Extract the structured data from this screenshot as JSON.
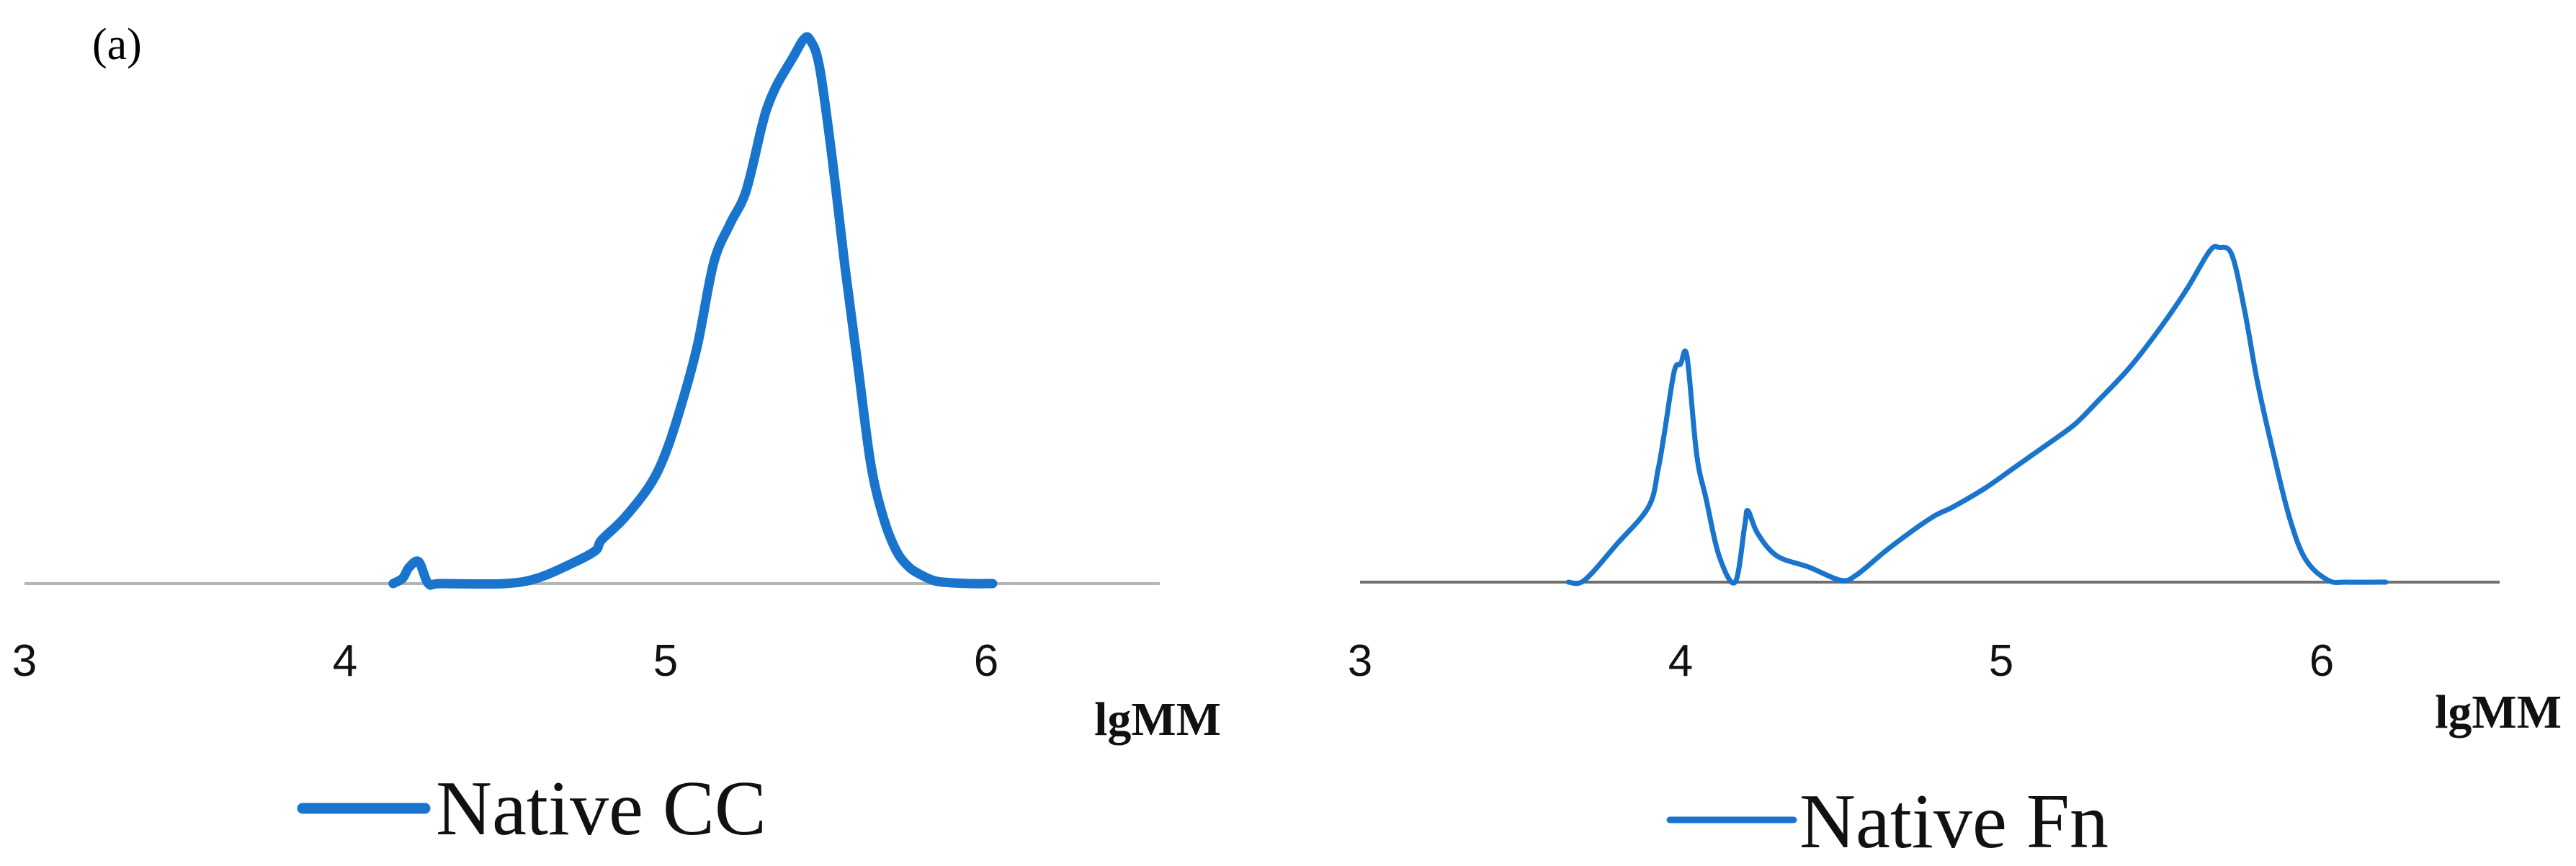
{
  "panel_label": "(a)",
  "chart_data": [
    {
      "type": "line",
      "title": "",
      "xlabel": "lgMM",
      "ylabel": "",
      "xlim": [
        3,
        6.5
      ],
      "ylim": [
        0,
        1
      ],
      "x_ticks": [
        "3",
        "4",
        "5",
        "6"
      ],
      "grid": false,
      "legend_position": "bottom-center",
      "series": [
        {
          "name": "Native CC",
          "color": "#1874cd",
          "line": "thick",
          "x": [
            4.15,
            4.18,
            4.2,
            4.23,
            4.26,
            4.3,
            4.5,
            4.6,
            4.7,
            4.78,
            4.8,
            4.87,
            4.95,
            5.0,
            5.05,
            5.1,
            5.15,
            5.2,
            5.25,
            5.3,
            5.32,
            5.35,
            5.4,
            5.43,
            5.45,
            5.48,
            5.52,
            5.56,
            5.6,
            5.64,
            5.68,
            5.72,
            5.76,
            5.8,
            5.84,
            5.88,
            5.95,
            6.02
          ],
          "y": [
            0.0,
            0.01,
            0.03,
            0.04,
            0.0,
            0.0,
            0.0,
            0.01,
            0.035,
            0.06,
            0.08,
            0.12,
            0.18,
            0.24,
            0.33,
            0.44,
            0.59,
            0.66,
            0.72,
            0.84,
            0.88,
            0.92,
            0.97,
            1.0,
            1.0,
            0.95,
            0.78,
            0.58,
            0.4,
            0.22,
            0.12,
            0.06,
            0.03,
            0.015,
            0.005,
            0.002,
            0.0,
            0.0
          ]
        }
      ]
    },
    {
      "type": "line",
      "title": "",
      "xlabel": "lgMM",
      "ylabel": "",
      "xlim": [
        3,
        6.5
      ],
      "ylim": [
        0,
        1
      ],
      "x_ticks": [
        "3",
        "4",
        "5",
        "6"
      ],
      "grid": false,
      "legend_position": "bottom-center",
      "series": [
        {
          "name": "Native Fn",
          "color": "#1874cd",
          "line": "thin",
          "x": [
            3.65,
            3.7,
            3.8,
            3.9,
            3.93,
            3.95,
            3.98,
            4.0,
            4.02,
            4.05,
            4.08,
            4.12,
            4.17,
            4.2,
            4.21,
            4.24,
            4.3,
            4.4,
            4.5,
            4.55,
            4.65,
            4.78,
            4.85,
            4.95,
            5.05,
            5.15,
            5.23,
            5.3,
            5.4,
            5.5,
            5.58,
            5.65,
            5.68,
            5.72,
            5.76,
            5.8,
            5.85,
            5.9,
            5.95,
            6.02,
            6.08,
            6.2
          ],
          "y": [
            0.0,
            0.005,
            0.1,
            0.2,
            0.3,
            0.4,
            0.56,
            0.58,
            0.6,
            0.34,
            0.22,
            0.07,
            0.0,
            0.15,
            0.19,
            0.13,
            0.07,
            0.04,
            0.005,
            0.02,
            0.09,
            0.17,
            0.2,
            0.25,
            0.31,
            0.37,
            0.42,
            0.48,
            0.57,
            0.68,
            0.78,
            0.88,
            0.89,
            0.87,
            0.72,
            0.53,
            0.34,
            0.17,
            0.06,
            0.005,
            0.0,
            0.0
          ]
        }
      ]
    }
  ]
}
